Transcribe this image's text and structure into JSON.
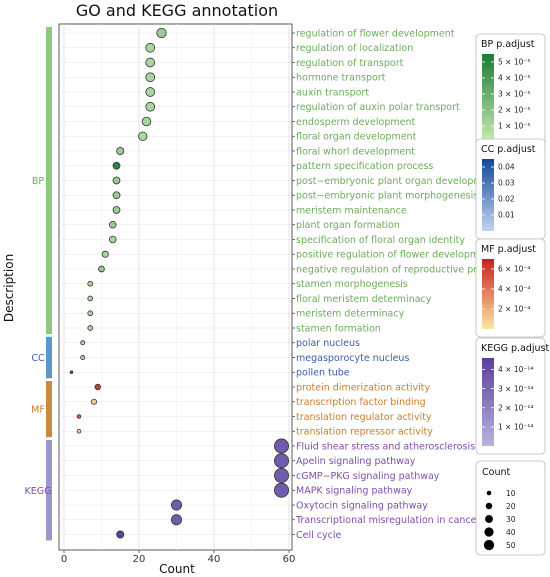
{
  "chart_data": {
    "type": "scatter",
    "title": "GO and KEGG annotation",
    "xlabel": "Count",
    "ylabel": "Description",
    "xlim": [
      0,
      60
    ],
    "xticks": [
      0,
      20,
      40,
      60
    ],
    "grid": true,
    "legend_position": "right",
    "groups": [
      {
        "name": "BP",
        "color": "#8fc97f",
        "label_color": "#6cab5c"
      },
      {
        "name": "CC",
        "color": "#5b97c9",
        "label_color": "#3b5ea8"
      },
      {
        "name": "MF",
        "color": "#c88a45",
        "label_color": "#c97d2f"
      },
      {
        "name": "KEGG",
        "color": "#9b98cc",
        "label_color": "#7d4fa8"
      }
    ],
    "rows": [
      {
        "term": "regulation of flower development",
        "group": "BP",
        "count": 26,
        "p_adjust": 1.5e-05
      },
      {
        "term": "regulation of localization",
        "group": "BP",
        "count": 23,
        "p_adjust": 1e-05
      },
      {
        "term": "regulation of transport",
        "group": "BP",
        "count": 23,
        "p_adjust": 1e-05
      },
      {
        "term": "hormone transport",
        "group": "BP",
        "count": 23,
        "p_adjust": 1e-05
      },
      {
        "term": "auxin transport",
        "group": "BP",
        "count": 23,
        "p_adjust": 1e-05
      },
      {
        "term": "regulation of auxin polar transport",
        "group": "BP",
        "count": 23,
        "p_adjust": 1e-05
      },
      {
        "term": "endosperm development",
        "group": "BP",
        "count": 22,
        "p_adjust": 1e-05
      },
      {
        "term": "floral organ development",
        "group": "BP",
        "count": 21,
        "p_adjust": 1e-05
      },
      {
        "term": "floral whorl development",
        "group": "BP",
        "count": 15,
        "p_adjust": 1.5e-05
      },
      {
        "term": "pattern specification process",
        "group": "BP",
        "count": 14,
        "p_adjust": 5e-05
      },
      {
        "term": "post−embryonic plant organ development",
        "group": "BP",
        "count": 14,
        "p_adjust": 1.5e-05
      },
      {
        "term": "post−embryonic plant morphogenesis",
        "group": "BP",
        "count": 14,
        "p_adjust": 1.5e-05
      },
      {
        "term": "meristem maintenance",
        "group": "BP",
        "count": 14,
        "p_adjust": 1.5e-05
      },
      {
        "term": "plant organ formation",
        "group": "BP",
        "count": 13,
        "p_adjust": 1.5e-05
      },
      {
        "term": "specification of floral organ identity",
        "group": "BP",
        "count": 13,
        "p_adjust": 1e-05
      },
      {
        "term": "positive regulation of flower development",
        "group": "BP",
        "count": 11,
        "p_adjust": 1e-05
      },
      {
        "term": "negative regulation of reproductive process",
        "group": "BP",
        "count": 10,
        "p_adjust": 1.5e-05
      },
      {
        "term": "stamen morphogenesis",
        "group": "BP",
        "count": 7,
        "p_adjust": 1e-05
      },
      {
        "term": "floral meristem determinacy",
        "group": "BP",
        "count": 7,
        "p_adjust": 1e-05
      },
      {
        "term": "meristem determinacy",
        "group": "BP",
        "count": 7,
        "p_adjust": 1e-05
      },
      {
        "term": "stamen formation",
        "group": "BP",
        "count": 7,
        "p_adjust": 1e-05
      },
      {
        "term": "polar nucleus",
        "group": "CC",
        "count": 5,
        "p_adjust": 0.005
      },
      {
        "term": "megasporocyte nucleus",
        "group": "CC",
        "count": 5,
        "p_adjust": 0.005
      },
      {
        "term": "pollen tube",
        "group": "CC",
        "count": 2,
        "p_adjust": 0.04
      },
      {
        "term": "protein dimerization activity",
        "group": "MF",
        "count": 9,
        "p_adjust": 0.0006
      },
      {
        "term": "transcription factor binding",
        "group": "MF",
        "count": 8,
        "p_adjust": 0.0001
      },
      {
        "term": "translation regulator activity",
        "group": "MF",
        "count": 4,
        "p_adjust": 0.0005
      },
      {
        "term": "translation repressor activity",
        "group": "MF",
        "count": 4,
        "p_adjust": 0.0001
      },
      {
        "term": "Fluid shear stress and atherosclerosis",
        "group": "KEGG",
        "count": 58,
        "p_adjust": 3.5e-14
      },
      {
        "term": "Apelin signaling pathway",
        "group": "KEGG",
        "count": 58,
        "p_adjust": 3.5e-14
      },
      {
        "term": "cGMP−PKG signaling pathway",
        "group": "KEGG",
        "count": 58,
        "p_adjust": 3.5e-14
      },
      {
        "term": "MAPK signaling pathway",
        "group": "KEGG",
        "count": 58,
        "p_adjust": 3.5e-14
      },
      {
        "term": "Oxytocin signaling pathway",
        "group": "KEGG",
        "count": 30,
        "p_adjust": 3.5e-14
      },
      {
        "term": "Transcriptional misregulation in cancer",
        "group": "KEGG",
        "count": 30,
        "p_adjust": 3.5e-14
      },
      {
        "term": "Cell cycle",
        "group": "KEGG",
        "count": 15,
        "p_adjust": 4.5e-14
      }
    ],
    "color_legends": [
      {
        "title": "BP p.adjust",
        "group": "BP",
        "min": 0.0,
        "max": 5.5e-05,
        "low_color": "#c6ecb4",
        "high_color": "#1e7b35",
        "ticks": [
          {
            "value": 5e-05,
            "label": "5 × 10⁻⁵"
          },
          {
            "value": 4e-05,
            "label": "4 × 10⁻⁵"
          },
          {
            "value": 3e-05,
            "label": "3 × 10⁻⁵"
          },
          {
            "value": 2e-05,
            "label": "2 × 10⁻⁵"
          },
          {
            "value": 1e-05,
            "label": "1 × 10⁻⁵"
          }
        ]
      },
      {
        "title": "CC p.adjust",
        "group": "CC",
        "min": 0.0,
        "max": 0.045,
        "low_color": "#c4d4ee",
        "high_color": "#13479a",
        "ticks": [
          {
            "value": 0.04,
            "label": "0.04"
          },
          {
            "value": 0.03,
            "label": "0.03"
          },
          {
            "value": 0.02,
            "label": "0.02"
          },
          {
            "value": 0.01,
            "label": "0.01"
          }
        ]
      },
      {
        "title": "MF p.adjust",
        "group": "MF",
        "min": 0.0,
        "max": 0.0007,
        "low_color": "#fde8a6",
        "high_color": "#c8201d",
        "ticks": [
          {
            "value": 0.0006,
            "label": "6 × 10⁻⁴"
          },
          {
            "value": 0.0004,
            "label": "4 × 10⁻⁴"
          },
          {
            "value": 0.0002,
            "label": "2 × 10⁻⁴"
          }
        ]
      },
      {
        "title": "KEGG p.adjust",
        "group": "KEGG",
        "min": 0.0,
        "max": 4.6e-14,
        "low_color": "#b7b3de",
        "high_color": "#5b3f9c",
        "ticks": [
          {
            "value": 4e-14,
            "label": "4 × 10⁻¹⁴"
          },
          {
            "value": 3e-14,
            "label": "3 × 10⁻¹⁴"
          },
          {
            "value": 2e-14,
            "label": "2 × 10⁻¹⁴"
          },
          {
            "value": 1e-14,
            "label": "1 × 10⁻¹⁴"
          }
        ]
      }
    ],
    "size_legend": {
      "title": "Count",
      "values": [
        10,
        20,
        30,
        40,
        50
      ]
    }
  }
}
